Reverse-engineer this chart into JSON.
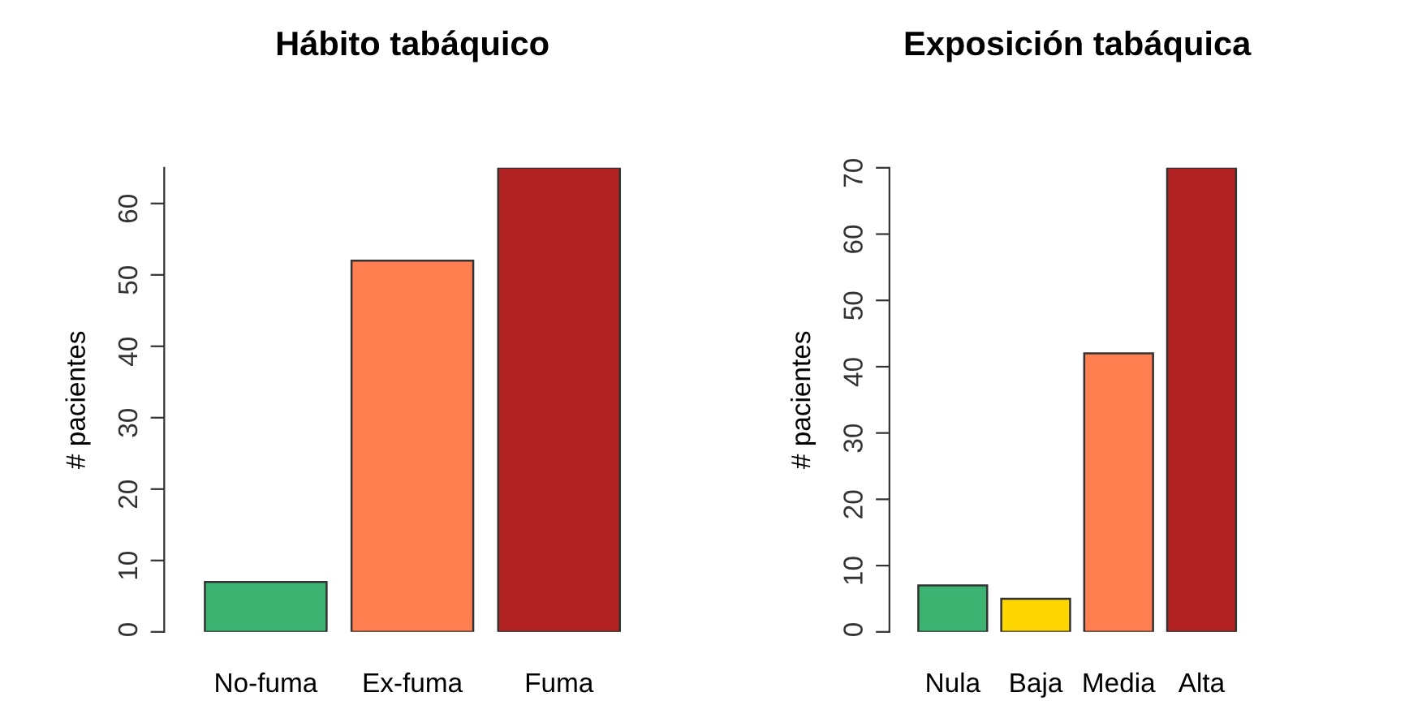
{
  "chart_data": [
    {
      "type": "bar",
      "title": "Hábito tabáquico",
      "ylabel": "# pacientes",
      "categories": [
        "No-fuma",
        "Ex-fuma",
        "Fuma"
      ],
      "values": [
        7,
        52,
        65
      ],
      "colors": [
        "#3cb371",
        "#ff7f50",
        "#b22222"
      ],
      "ylim": [
        0,
        65
      ],
      "yticks": [
        0,
        10,
        20,
        30,
        40,
        50,
        60
      ],
      "grid": false
    },
    {
      "type": "bar",
      "title": "Exposición tabáquica",
      "ylabel": "# pacientes",
      "categories": [
        "Nula",
        "Baja",
        "Media",
        "Alta"
      ],
      "values": [
        7,
        5,
        42,
        70
      ],
      "colors": [
        "#3cb371",
        "#ffd700",
        "#ff7f50",
        "#b22222"
      ],
      "ylim": [
        0,
        70
      ],
      "yticks": [
        0,
        10,
        20,
        30,
        40,
        50,
        60,
        70
      ],
      "grid": false
    }
  ]
}
